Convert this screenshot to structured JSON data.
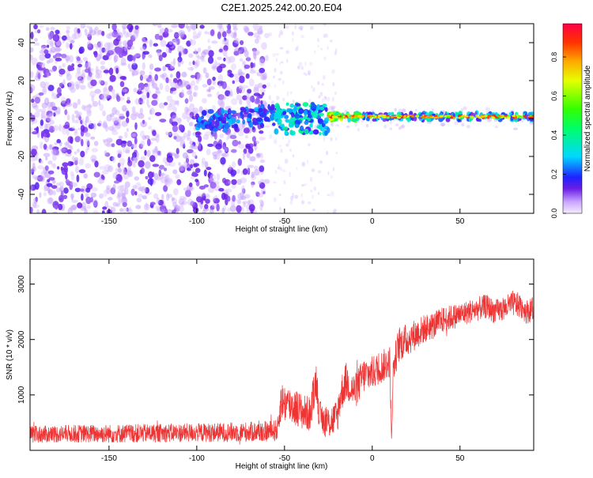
{
  "title": "C2E1.2025.242.00.20.E04",
  "colorbar": {
    "label": "Normalized spectral amplitude",
    "ticks": [
      {
        "v": 0.0,
        "label": "0.0"
      },
      {
        "v": 0.2,
        "label": "0.2"
      },
      {
        "v": 0.4,
        "label": "0.4"
      },
      {
        "v": 0.6,
        "label": "0.6"
      },
      {
        "v": 0.8,
        "label": "0.8"
      }
    ],
    "range": [
      0,
      0.97
    ]
  },
  "chart_data": [
    {
      "type": "heatmap",
      "xlabel": "Height of straight line (km)",
      "ylabel": "Frequency (Hz)",
      "xlim": [
        -195,
        92
      ],
      "ylim": [
        -50,
        50
      ],
      "xticks": [
        {
          "v": -150,
          "label": "-150"
        },
        {
          "v": -100,
          "label": "-100"
        },
        {
          "v": -50,
          "label": "-50"
        },
        {
          "v": 0,
          "label": "0"
        },
        {
          "v": 50,
          "label": "50"
        }
      ],
      "yticks": [
        {
          "v": -40,
          "label": "-40"
        },
        {
          "v": -20,
          "label": "-20"
        },
        {
          "v": 0,
          "label": "0"
        },
        {
          "v": 20,
          "label": "20"
        },
        {
          "v": 40,
          "label": "40"
        }
      ],
      "description_segments": [
        {
          "x_range": [
            -195,
            -60
          ],
          "pattern": "broadband noise, amplitude ~0.05-0.15"
        },
        {
          "x_range": [
            -100,
            -55
          ],
          "freq_hz": [
            -5,
            8
          ],
          "amplitude": [
            0.15,
            0.3
          ]
        },
        {
          "x_range": [
            -55,
            -25
          ],
          "freq_hz": [
            -8,
            8
          ],
          "amplitude": [
            0.2,
            0.45
          ]
        },
        {
          "x_range": [
            -25,
            92
          ],
          "freq_hz": [
            0,
            2
          ],
          "amplitude": [
            0.5,
            0.95
          ]
        }
      ]
    },
    {
      "type": "line",
      "xlabel": "Height of straight line (km)",
      "ylabel": "SNR (10 * v/v)",
      "xlim": [
        -195,
        92
      ],
      "ylim": [
        0,
        3450
      ],
      "xticks": [
        {
          "v": -150,
          "label": "-150"
        },
        {
          "v": -100,
          "label": "-100"
        },
        {
          "v": -50,
          "label": "-50"
        },
        {
          "v": 0,
          "label": "0"
        },
        {
          "v": 50,
          "label": "50"
        }
      ],
      "yticks": [
        {
          "v": 1000,
          "label": "1000"
        },
        {
          "v": 2000,
          "label": "2000"
        },
        {
          "v": 3000,
          "label": "3000"
        }
      ],
      "series": [
        {
          "color": "#ee3333",
          "x": [
            -195,
            -175,
            -150,
            -125,
            -100,
            -75,
            -60,
            -54,
            -52,
            -50,
            -45,
            -40,
            -35,
            -32,
            -30,
            -25,
            -20,
            -18,
            -15,
            -10,
            -5,
            0,
            5,
            10,
            11,
            12,
            15,
            20,
            25,
            30,
            35,
            40,
            45,
            50,
            55,
            60,
            65,
            70,
            75,
            80,
            85,
            88,
            92
          ],
          "y": [
            280,
            300,
            300,
            310,
            320,
            330,
            340,
            360,
            900,
            850,
            800,
            700,
            650,
            1300,
            600,
            500,
            600,
            1000,
            1250,
            1050,
            1350,
            1400,
            1500,
            1600,
            200,
            1500,
            1900,
            2000,
            2100,
            2200,
            2250,
            2350,
            2400,
            2450,
            2500,
            2550,
            2600,
            2500,
            2550,
            2650,
            2600,
            2500,
            2550
          ],
          "noise": [
            160,
            160,
            170,
            170,
            170,
            180,
            190,
            200,
            350,
            350,
            350,
            330,
            320,
            350,
            300,
            300,
            330,
            350,
            350,
            330,
            330,
            300,
            300,
            300,
            100,
            300,
            320,
            300,
            280,
            260,
            250,
            240,
            230,
            220,
            220,
            220,
            220,
            220,
            220,
            230,
            230,
            220,
            220
          ]
        }
      ]
    }
  ]
}
